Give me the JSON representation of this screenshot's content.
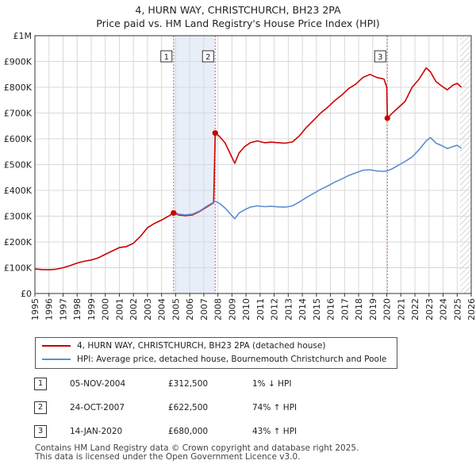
{
  "title_line1": "4, HURN WAY, CHRISTCHURCH, BH23 2PA",
  "title_line2": "Price paid vs. HM Land Registry's House Price Index (HPI)",
  "colors": {
    "property": "#cc0000",
    "hpi": "#5b8fd0",
    "shade": "#e8eef8",
    "grid": "#d8d8d8",
    "vline": "#e06060",
    "hatch": "#b0b0b0"
  },
  "legend": {
    "property_label": "4, HURN WAY, CHRISTCHURCH, BH23 2PA (detached house)",
    "hpi_label": "HPI: Average price, detached house, Bournemouth Christchurch and Poole"
  },
  "sales": [
    {
      "num": "1",
      "date": "05-NOV-2004",
      "price": "£312,500",
      "hpi": "1% ↓ HPI"
    },
    {
      "num": "2",
      "date": "24-OCT-2007",
      "price": "£622,500",
      "hpi": "74% ↑ HPI"
    },
    {
      "num": "3",
      "date": "14-JAN-2020",
      "price": "£680,000",
      "hpi": "43% ↑ HPI"
    }
  ],
  "footer_line1": "Contains HM Land Registry data © Crown copyright and database right 2025.",
  "footer_line2": "This data is licensed under the Open Government Licence v3.0.",
  "chart_data": {
    "type": "line",
    "title": "4, HURN WAY, CHRISTCHURCH, BH23 2PA — Price paid vs. HM Land Registry's House Price Index (HPI)",
    "xlim": [
      1995,
      2026
    ],
    "ylim": [
      0,
      1000000
    ],
    "x_ticks": [
      "1995",
      "1996",
      "1997",
      "1998",
      "1999",
      "2000",
      "2001",
      "2002",
      "2003",
      "2004",
      "2005",
      "2006",
      "2007",
      "2008",
      "2009",
      "2010",
      "2011",
      "2012",
      "2013",
      "2014",
      "2015",
      "2016",
      "2017",
      "2018",
      "2019",
      "2020",
      "2021",
      "2022",
      "2023",
      "2024",
      "2025",
      "2026"
    ],
    "y_ticks": [
      {
        "value": 0,
        "label": "£0"
      },
      {
        "value": 100000,
        "label": "£100K"
      },
      {
        "value": 200000,
        "label": "£200K"
      },
      {
        "value": 300000,
        "label": "£300K"
      },
      {
        "value": 400000,
        "label": "£400K"
      },
      {
        "value": 500000,
        "label": "£500K"
      },
      {
        "value": 600000,
        "label": "£600K"
      },
      {
        "value": 700000,
        "label": "£700K"
      },
      {
        "value": 800000,
        "label": "£800K"
      },
      {
        "value": 900000,
        "label": "£900K"
      },
      {
        "value": 1000000,
        "label": "£1M"
      }
    ],
    "shaded_ranges": [
      [
        2004.85,
        2007.81
      ]
    ],
    "hatched_from": 2025.2,
    "sale_markers": [
      {
        "label": "1",
        "x": 2004.85,
        "y": 312500
      },
      {
        "label": "2",
        "x": 2007.81,
        "y": 622500
      },
      {
        "label": "3",
        "x": 2020.04,
        "y": 680000
      }
    ],
    "series": [
      {
        "name": "4, HURN WAY, CHRISTCHURCH, BH23 2PA (detached house)",
        "color": "#cc0000",
        "points": [
          [
            1995.0,
            95000
          ],
          [
            1995.5,
            93000
          ],
          [
            1996.0,
            92000
          ],
          [
            1996.5,
            94000
          ],
          [
            1997.0,
            100000
          ],
          [
            1997.5,
            108000
          ],
          [
            1998.0,
            118000
          ],
          [
            1998.5,
            125000
          ],
          [
            1999.0,
            130000
          ],
          [
            1999.5,
            138000
          ],
          [
            2000.0,
            152000
          ],
          [
            2000.5,
            165000
          ],
          [
            2001.0,
            178000
          ],
          [
            2001.5,
            182000
          ],
          [
            2002.0,
            195000
          ],
          [
            2002.5,
            222000
          ],
          [
            2003.0,
            255000
          ],
          [
            2003.5,
            272000
          ],
          [
            2004.0,
            285000
          ],
          [
            2004.5,
            300000
          ],
          [
            2004.85,
            312500
          ],
          [
            2005.2,
            305000
          ],
          [
            2005.7,
            302000
          ],
          [
            2006.2,
            305000
          ],
          [
            2006.7,
            318000
          ],
          [
            2007.2,
            335000
          ],
          [
            2007.7,
            352000
          ],
          [
            2007.81,
            622500
          ],
          [
            2008.1,
            610000
          ],
          [
            2008.5,
            585000
          ],
          [
            2008.9,
            540000
          ],
          [
            2009.2,
            505000
          ],
          [
            2009.5,
            545000
          ],
          [
            2009.9,
            570000
          ],
          [
            2010.3,
            585000
          ],
          [
            2010.8,
            592000
          ],
          [
            2011.3,
            585000
          ],
          [
            2011.8,
            587000
          ],
          [
            2012.3,
            585000
          ],
          [
            2012.8,
            583000
          ],
          [
            2013.3,
            588000
          ],
          [
            2013.8,
            612000
          ],
          [
            2014.3,
            645000
          ],
          [
            2014.8,
            672000
          ],
          [
            2015.3,
            700000
          ],
          [
            2015.8,
            722000
          ],
          [
            2016.3,
            748000
          ],
          [
            2016.8,
            770000
          ],
          [
            2017.3,
            795000
          ],
          [
            2017.8,
            812000
          ],
          [
            2018.3,
            838000
          ],
          [
            2018.8,
            850000
          ],
          [
            2019.3,
            838000
          ],
          [
            2019.8,
            832000
          ],
          [
            2020.0,
            800000
          ],
          [
            2020.04,
            680000
          ],
          [
            2020.4,
            700000
          ],
          [
            2020.8,
            720000
          ],
          [
            2021.3,
            745000
          ],
          [
            2021.8,
            800000
          ],
          [
            2022.3,
            832000
          ],
          [
            2022.8,
            875000
          ],
          [
            2023.1,
            860000
          ],
          [
            2023.5,
            822000
          ],
          [
            2023.9,
            805000
          ],
          [
            2024.3,
            790000
          ],
          [
            2024.7,
            808000
          ],
          [
            2025.0,
            815000
          ],
          [
            2025.3,
            800000
          ]
        ]
      },
      {
        "name": "HPI: Average price, detached house, Bournemouth Christchurch and Poole",
        "color": "#5b8fd0",
        "points": [
          [
            2004.85,
            316000
          ],
          [
            2005.2,
            308000
          ],
          [
            2005.7,
            305000
          ],
          [
            2006.2,
            308000
          ],
          [
            2006.7,
            320000
          ],
          [
            2007.2,
            338000
          ],
          [
            2007.81,
            358000
          ],
          [
            2008.1,
            350000
          ],
          [
            2008.5,
            332000
          ],
          [
            2008.9,
            308000
          ],
          [
            2009.2,
            290000
          ],
          [
            2009.5,
            312000
          ],
          [
            2009.9,
            325000
          ],
          [
            2010.3,
            335000
          ],
          [
            2010.8,
            340000
          ],
          [
            2011.3,
            337000
          ],
          [
            2011.8,
            338000
          ],
          [
            2012.3,
            336000
          ],
          [
            2012.8,
            335000
          ],
          [
            2013.3,
            340000
          ],
          [
            2013.8,
            355000
          ],
          [
            2014.3,
            373000
          ],
          [
            2014.8,
            388000
          ],
          [
            2015.3,
            404000
          ],
          [
            2015.8,
            417000
          ],
          [
            2016.3,
            432000
          ],
          [
            2016.8,
            444000
          ],
          [
            2017.3,
            458000
          ],
          [
            2017.8,
            468000
          ],
          [
            2018.3,
            478000
          ],
          [
            2018.8,
            480000
          ],
          [
            2019.3,
            475000
          ],
          [
            2019.8,
            474000
          ],
          [
            2020.04,
            476000
          ],
          [
            2020.4,
            484000
          ],
          [
            2020.8,
            497000
          ],
          [
            2021.3,
            512000
          ],
          [
            2021.8,
            530000
          ],
          [
            2022.3,
            558000
          ],
          [
            2022.8,
            592000
          ],
          [
            2023.1,
            605000
          ],
          [
            2023.5,
            583000
          ],
          [
            2023.9,
            574000
          ],
          [
            2024.3,
            562000
          ],
          [
            2024.7,
            570000
          ],
          [
            2025.0,
            575000
          ],
          [
            2025.3,
            563000
          ]
        ]
      }
    ]
  }
}
